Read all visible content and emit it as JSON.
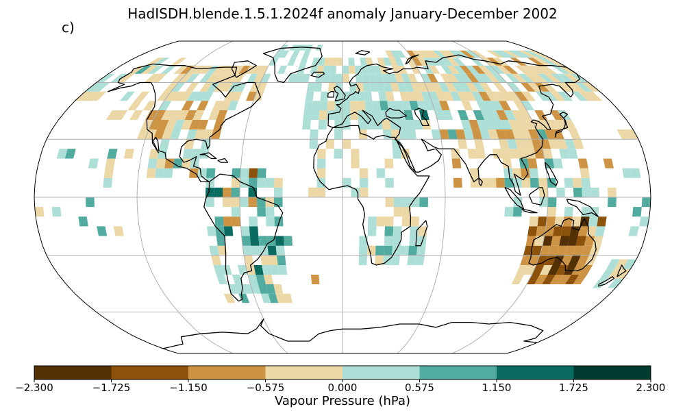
{
  "title": "HadISDH.blende.1.5.1.2024f anomaly January-December 2002",
  "panel_label": "c)",
  "colorbar": {
    "label": "Vapour Pressure (hPa)",
    "ticks": [
      "−2.300",
      "−1.725",
      "−1.150",
      "−0.575",
      "0.000",
      "0.575",
      "1.150",
      "1.725",
      "2.300"
    ],
    "bins": [
      {
        "range": [
          -2.3,
          -1.725
        ],
        "color": "#543005"
      },
      {
        "range": [
          -1.725,
          -1.15
        ],
        "color": "#8c510a"
      },
      {
        "range": [
          -1.15,
          -0.575
        ],
        "color": "#cc9444"
      },
      {
        "range": [
          -0.575,
          0.0
        ],
        "color": "#ecd8a6"
      },
      {
        "range": [
          0.0,
          0.575
        ],
        "color": "#aedfd7"
      },
      {
        "range": [
          0.575,
          1.15
        ],
        "color": "#52ab9f"
      },
      {
        "range": [
          1.15,
          1.725
        ],
        "color": "#0a6b61"
      },
      {
        "range": [
          1.725,
          2.3
        ],
        "color": "#003c30"
      }
    ]
  },
  "map": {
    "projection": "Robinson",
    "graticule_longitudes": [
      -180,
      -120,
      -60,
      0,
      60,
      120,
      180
    ],
    "graticule_latitudes": [
      -60,
      -30,
      0,
      30,
      60
    ]
  }
}
